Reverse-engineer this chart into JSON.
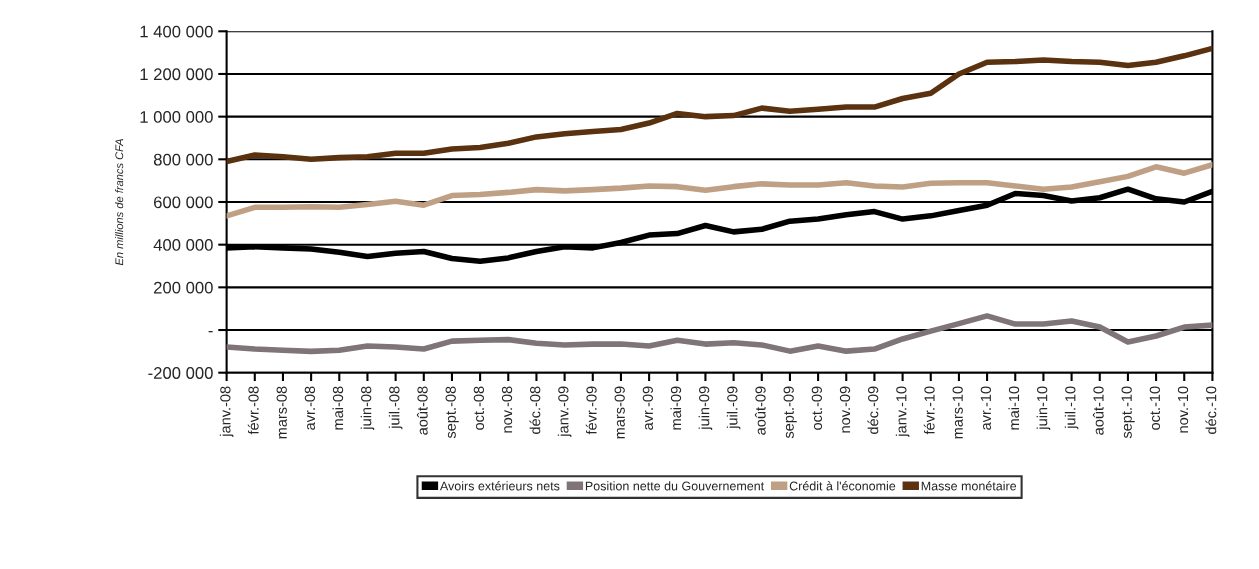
{
  "chart_data": {
    "type": "line",
    "ylabel": "En millions de francs CFA",
    "categories": [
      "janv.-08",
      "févr.-08",
      "mars-08",
      "avr.-08",
      "mai-08",
      "juin-08",
      "juil.-08",
      "août-08",
      "sept.-08",
      "oct.-08",
      "nov.-08",
      "déc.-08",
      "janv.-09",
      "févr.-09",
      "mars-09",
      "avr.-09",
      "mai-09",
      "juin-09",
      "juil.-09",
      "août-09",
      "sept.-09",
      "oct.-09",
      "nov.-09",
      "déc.-09",
      "janv.-10",
      "févr.-10",
      "mars-10",
      "avr.-10",
      "mai-10",
      "juin-10",
      "juil.-10",
      "août-10",
      "sept.-10",
      "oct.-10",
      "nov.-10",
      "déc.-10"
    ],
    "series": [
      {
        "name": "Avoirs extérieurs nets",
        "color": "#000000",
        "values": [
          385000,
          390000,
          385000,
          380000,
          365000,
          345000,
          360000,
          368000,
          335000,
          322000,
          338000,
          368000,
          390000,
          385000,
          410000,
          445000,
          452000,
          490000,
          460000,
          472000,
          510000,
          520000,
          540000,
          555000,
          520000,
          535000,
          560000,
          585000,
          640000,
          630000,
          605000,
          620000,
          660000,
          615000,
          600000,
          650000
        ]
      },
      {
        "name": "Position nette du Gouvernement",
        "color": "#7f7478",
        "values": [
          -80000,
          -89000,
          -95000,
          -100000,
          -95000,
          -75000,
          -80000,
          -89000,
          -52000,
          -48000,
          -45000,
          -62000,
          -70000,
          -66000,
          -66000,
          -75000,
          -48000,
          -66000,
          -60000,
          -70000,
          -99000,
          -75000,
          -99000,
          -89000,
          -42000,
          -5000,
          30000,
          66000,
          28000,
          28000,
          42000,
          14000,
          -56000,
          -28000,
          14000,
          23000
        ]
      },
      {
        "name": "Crédit à l'économie",
        "color": "#bfa084",
        "values": [
          535000,
          575000,
          575000,
          578000,
          575000,
          588000,
          603000,
          585000,
          630000,
          635000,
          645000,
          658000,
          652000,
          658000,
          665000,
          675000,
          672000,
          655000,
          672000,
          685000,
          680000,
          680000,
          690000,
          675000,
          670000,
          688000,
          690000,
          690000,
          675000,
          660000,
          670000,
          695000,
          720000,
          765000,
          735000,
          775000
        ]
      },
      {
        "name": "Masse monétaire",
        "color": "#5a3210",
        "values": [
          790000,
          820000,
          812000,
          800000,
          808000,
          812000,
          828000,
          828000,
          848000,
          855000,
          875000,
          905000,
          920000,
          930000,
          940000,
          970000,
          1015000,
          1000000,
          1005000,
          1040000,
          1025000,
          1035000,
          1045000,
          1045000,
          1085000,
          1110000,
          1200000,
          1255000,
          1258000,
          1265000,
          1258000,
          1255000,
          1240000,
          1255000,
          1285000,
          1320000
        ]
      }
    ],
    "ylim": [
      -200000,
      1400000
    ],
    "yticks": [
      {
        "value": -200000,
        "label": "-200 000"
      },
      {
        "value": 0,
        "label": "-"
      },
      {
        "value": 200000,
        "label": "200 000"
      },
      {
        "value": 400000,
        "label": "400 000"
      },
      {
        "value": 600000,
        "label": "600 000"
      },
      {
        "value": 800000,
        "label": "800 000"
      },
      {
        "value": 1000000,
        "label": "1 000 000"
      },
      {
        "value": 1200000,
        "label": "1 200 000"
      },
      {
        "value": 1400000,
        "label": "1 400 000"
      }
    ],
    "grid": "y",
    "legend": "bottom",
    "marker": "none",
    "line_style": "solid"
  }
}
